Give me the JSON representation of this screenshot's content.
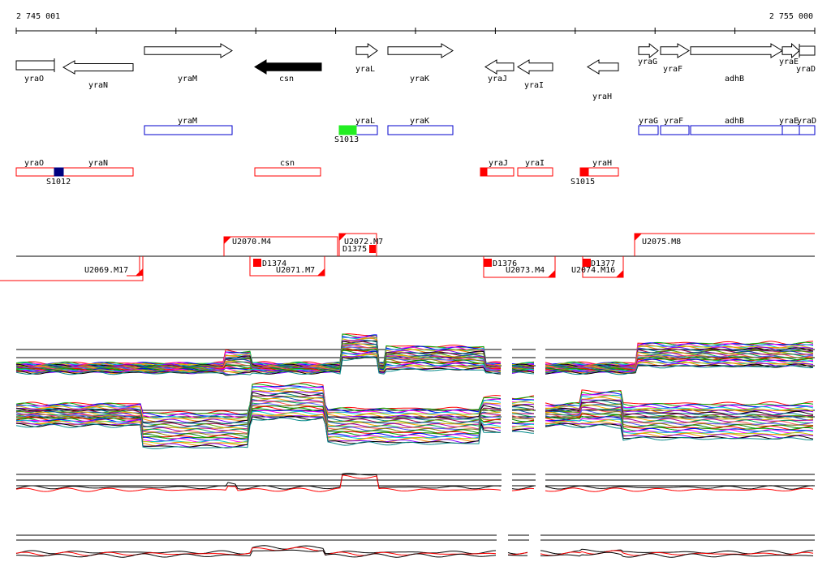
{
  "coords": {
    "start": "2 745 001",
    "end": "2 755 000"
  },
  "colors": {
    "background": "#ffffff",
    "gene_fill": "#ffffff",
    "gene_selected": "#000000",
    "operon_outline_blue": "#0000cc",
    "operon_outline_red": "#ff0000",
    "site_green": "#22ee22",
    "site_navy": "#000080",
    "site_red": "#ff0000",
    "trace_black": "#000000",
    "trace_red": "#ff0000"
  },
  "genes": [
    {
      "name": "yraO",
      "dir": "right",
      "selected": false
    },
    {
      "name": "yraN",
      "dir": "left",
      "selected": false
    },
    {
      "name": "yraM",
      "dir": "right",
      "selected": false
    },
    {
      "name": "csn",
      "dir": "left",
      "selected": true
    },
    {
      "name": "yraL",
      "dir": "right",
      "selected": false
    },
    {
      "name": "yraK",
      "dir": "right",
      "selected": false
    },
    {
      "name": "yraJ",
      "dir": "left",
      "selected": false
    },
    {
      "name": "yraI",
      "dir": "left",
      "selected": false
    },
    {
      "name": "yraH",
      "dir": "left",
      "selected": false
    },
    {
      "name": "yraG",
      "dir": "right",
      "selected": false
    },
    {
      "name": "yraF",
      "dir": "right",
      "selected": false
    },
    {
      "name": "adhB",
      "dir": "right",
      "selected": false
    },
    {
      "name": "yraE",
      "dir": "right",
      "selected": false
    },
    {
      "name": "yraD",
      "dir": "right",
      "selected": false
    }
  ],
  "operons_blue": [
    "yraM",
    "yraL",
    "yraK",
    "yraG",
    "yraF",
    "adhB",
    "yraE",
    "yraD"
  ],
  "operons_red": [
    "yraO",
    "yraN",
    "csn",
    "yraJ",
    "yraI",
    "yraH"
  ],
  "sites": [
    "S1012",
    "S1013",
    "S1015"
  ],
  "transcripts_upper": [
    "U2070.M4",
    "U2072.M7",
    "D1375",
    "U2075.M8"
  ],
  "transcripts_lower": [
    "U2069.M17",
    "D1374",
    "U2071.M7",
    "D1376",
    "U2073.M4",
    "U2074.M16",
    "D1377"
  ],
  "tracks": [
    "expression-panel-1",
    "expression-panel-2",
    "expression-panel-3",
    "expression-panel-4"
  ]
}
